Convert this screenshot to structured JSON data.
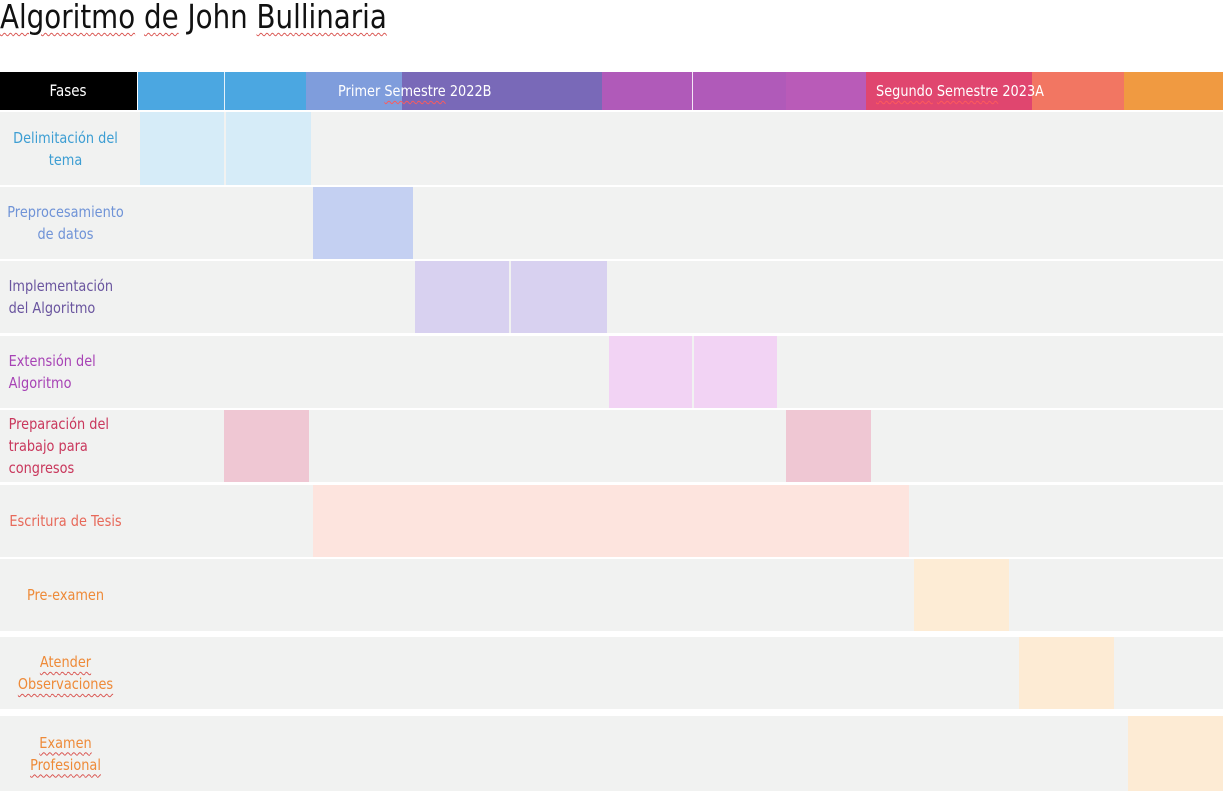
{
  "title": "Algoritmo de John Bullinaria",
  "header": {
    "phases_label": "Fases",
    "semester_1_label": "Primer Semestre 2022B",
    "semester_2_label": "Segundo Semestre 2023A",
    "colors": [
      "#4ba7e1",
      "#7f9ddc",
      "#7969b8",
      "#b05ab9",
      "#c95bb3",
      "#e8436a",
      "#f27662",
      "#f09a41"
    ]
  },
  "rows": [
    {
      "label_lines": [
        "Delimitación del",
        "tema"
      ],
      "color": "#3d9ed3",
      "cell_color": "#d6ecf8"
    },
    {
      "label_lines": [
        "Preprocesamiento",
        "de datos"
      ],
      "color": "#6f93d7",
      "cell_color": "#c4d0f2"
    },
    {
      "label_lines": [
        "Implementación",
        "del Algoritmo"
      ],
      "color": "#6a559f",
      "cell_color": "#d8d1f0"
    },
    {
      "label_lines": [
        "Extensión del",
        "Algoritmo"
      ],
      "color": "#a743b5",
      "cell_color": "#f2d3f4"
    },
    {
      "label_lines": [
        "Preparación del",
        "trabajo para",
        "congresos"
      ],
      "color": "#c9375c",
      "cell_color": "#efc7d3"
    },
    {
      "label_lines": [
        "Escritura de Tesis"
      ],
      "color": "#e7695a",
      "cell_color": "#fde4de"
    },
    {
      "label_lines": [
        "Pre-examen"
      ],
      "color": "#ee8a38",
      "cell_color": "#fdecd5"
    },
    {
      "label_lines": [
        "Atender",
        "Observaciones"
      ],
      "color": "#ee8a38",
      "cell_color": "#fdebd4"
    },
    {
      "label_lines": [
        "Examen",
        "Profesional"
      ],
      "color": "#ee8a38",
      "cell_color": "#fdebd4"
    }
  ]
}
